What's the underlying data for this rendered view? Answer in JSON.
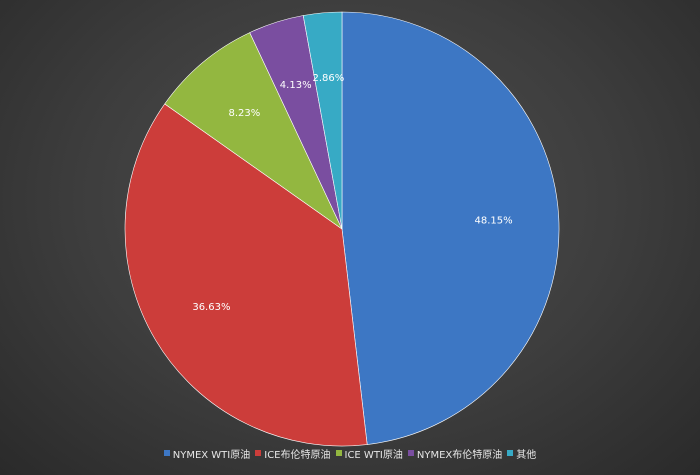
{
  "chart_data": {
    "type": "pie",
    "title": "",
    "categories": [
      "NYMEX WTI原油",
      "ICE布伦特原油",
      "ICE WTI原油",
      "NYMEX布伦特原油",
      "其他"
    ],
    "values": [
      48.15,
      36.63,
      8.23,
      4.13,
      2.86
    ],
    "data_labels": [
      "48.15%",
      "36.63%",
      "8.23%",
      "4.13%",
      "2.86%"
    ],
    "colors": [
      "#3d77c4",
      "#cc3d3a",
      "#93b740",
      "#7a4ea0",
      "#37aac5"
    ],
    "legend": {
      "position": "bottom",
      "entries": [
        "NYMEX WTI原油",
        "ICE布伦特原油",
        "ICE WTI原油",
        "NYMEX布伦特原油",
        "其他"
      ]
    }
  }
}
